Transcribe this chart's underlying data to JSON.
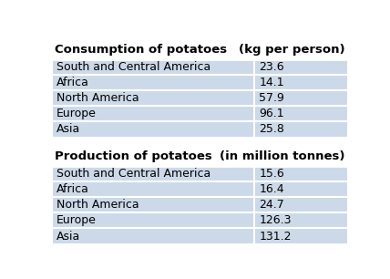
{
  "consumption_title": "Consumption of potatoes",
  "consumption_unit": "(kg per person)",
  "consumption_regions": [
    "South and Central America",
    "Africa",
    "North America",
    "Europe",
    "Asia"
  ],
  "consumption_values": [
    "23.6",
    "14.1",
    "57.9",
    "96.1",
    "25.8"
  ],
  "production_title": "Production of potatoes",
  "production_unit": "(in million tonnes)",
  "production_regions": [
    "South and Central America",
    "Africa",
    "North America",
    "Europe",
    "Asia"
  ],
  "production_values": [
    "15.6",
    "16.4",
    "24.7",
    "126.3",
    "131.2"
  ],
  "row_bg": "#ccd9e8",
  "border_color": "#ffffff",
  "text_color": "#000000",
  "title_fontsize": 9.5,
  "cell_fontsize": 9.0,
  "fig_bg": "#ffffff"
}
